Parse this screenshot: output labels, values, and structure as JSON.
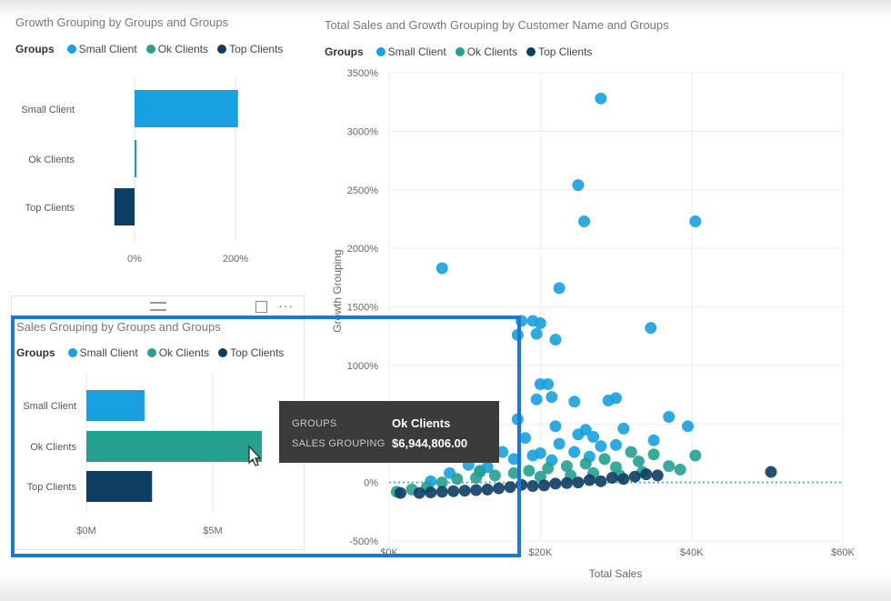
{
  "colors": {
    "small": "#19a0e0",
    "ok": "#26a08f",
    "top": "#0e3d63",
    "highlight": "#1a78d2"
  },
  "legend": {
    "title": "Groups",
    "items": [
      "Small Client",
      "Ok Clients",
      "Top Clients"
    ]
  },
  "chart_data": [
    {
      "type": "bar",
      "title": "Growth Grouping by Groups and Groups",
      "categories": [
        "Small Client",
        "Ok Clients",
        "Top Clients"
      ],
      "values": [
        205,
        4,
        -40
      ],
      "unit": "%",
      "ticks": [
        "0%",
        "200%"
      ],
      "xlim": [
        -50,
        250
      ]
    },
    {
      "type": "bar",
      "title": "Sales Grouping by Groups and Groups",
      "categories": [
        "Small Client",
        "Ok Clients",
        "Top Clients"
      ],
      "values": [
        2300000,
        6944806,
        2600000
      ],
      "ticks": [
        "$0M",
        "$5M"
      ],
      "xlim": [
        0,
        8500000
      ]
    },
    {
      "type": "scatter",
      "title": "Total Sales and Growth Grouping by Customer Name and Groups",
      "xlabel": "Total Sales",
      "ylabel": "Growth Grouping",
      "xlim": [
        0,
        60000
      ],
      "ylim": [
        -500,
        3500
      ],
      "xticks": [
        "$0K",
        "$20K",
        "$40K",
        "$60K"
      ],
      "yticks": [
        "-500%",
        "0%",
        "500%",
        "1000%",
        "1500%",
        "2000%",
        "2500%",
        "3000%",
        "3500%"
      ],
      "series": [
        {
          "name": "Small Client",
          "points": [
            [
              28000,
              3280
            ],
            [
              25000,
              2540
            ],
            [
              25800,
              2230
            ],
            [
              40500,
              2230
            ],
            [
              7000,
              1830
            ],
            [
              22500,
              1660
            ],
            [
              34600,
              1320
            ],
            [
              20000,
              1360
            ],
            [
              19000,
              1380
            ],
            [
              17500,
              1380
            ],
            [
              19500,
              1270
            ],
            [
              22000,
              1220
            ],
            [
              17000,
              1260
            ],
            [
              21000,
              840
            ],
            [
              20000,
              840
            ],
            [
              21500,
              730
            ],
            [
              19500,
              710
            ],
            [
              24500,
              690
            ],
            [
              30000,
              720
            ],
            [
              29000,
              700
            ],
            [
              37000,
              560
            ],
            [
              39500,
              480
            ],
            [
              26000,
              450
            ],
            [
              22000,
              480
            ],
            [
              25000,
              410
            ],
            [
              31000,
              460
            ],
            [
              27000,
              390
            ],
            [
              22500,
              330
            ],
            [
              35000,
              360
            ],
            [
              18000,
              380
            ],
            [
              17000,
              540
            ],
            [
              30000,
              320
            ],
            [
              28000,
              310
            ],
            [
              15000,
              260
            ],
            [
              20000,
              250
            ],
            [
              24500,
              260
            ],
            [
              19000,
              230
            ],
            [
              16500,
              200
            ],
            [
              10500,
              150
            ],
            [
              13000,
              130
            ],
            [
              8000,
              80
            ],
            [
              5500,
              10
            ],
            [
              12000,
              100
            ],
            [
              21500,
              190
            ],
            [
              26500,
              220
            ]
          ]
        },
        {
          "name": "Ok Clients",
          "points": [
            [
              40500,
              230
            ],
            [
              32000,
              260
            ],
            [
              35000,
              240
            ],
            [
              38500,
              110
            ],
            [
              37000,
              140
            ],
            [
              33000,
              180
            ],
            [
              28500,
              200
            ],
            [
              30000,
              130
            ],
            [
              26000,
              160
            ],
            [
              23500,
              140
            ],
            [
              21000,
              120
            ],
            [
              18500,
              100
            ],
            [
              16500,
              80
            ],
            [
              14000,
              60
            ],
            [
              11500,
              40
            ],
            [
              9000,
              30
            ],
            [
              7000,
              0
            ],
            [
              5000,
              -40
            ],
            [
              3000,
              -60
            ],
            [
              1000,
              -80
            ],
            [
              24000,
              60
            ],
            [
              27000,
              80
            ],
            [
              30500,
              60
            ],
            [
              33500,
              90
            ],
            [
              20000,
              50
            ],
            [
              12000,
              90
            ]
          ]
        },
        {
          "name": "Top Clients",
          "points": [
            [
              50500,
              90
            ],
            [
              35500,
              60
            ],
            [
              34000,
              70
            ],
            [
              31000,
              30
            ],
            [
              28000,
              10
            ],
            [
              25000,
              0
            ],
            [
              22000,
              -10
            ],
            [
              19000,
              -30
            ],
            [
              16000,
              -40
            ],
            [
              13000,
              -60
            ],
            [
              10000,
              -70
            ],
            [
              7000,
              -80
            ],
            [
              4000,
              -90
            ],
            [
              1500,
              -90
            ],
            [
              17500,
              -20
            ],
            [
              29500,
              40
            ],
            [
              32500,
              50
            ],
            [
              26500,
              20
            ],
            [
              23500,
              -5
            ],
            [
              20500,
              -25
            ],
            [
              14500,
              -50
            ],
            [
              11500,
              -65
            ],
            [
              8500,
              -75
            ],
            [
              5500,
              -85
            ]
          ]
        }
      ]
    }
  ],
  "tooltip": {
    "label1": "GROUPS",
    "value1": "Ok Clients",
    "label2": "SALES GROUPING",
    "value2": "$6,944,806.00"
  },
  "panel_controls": {
    "more": "···"
  }
}
